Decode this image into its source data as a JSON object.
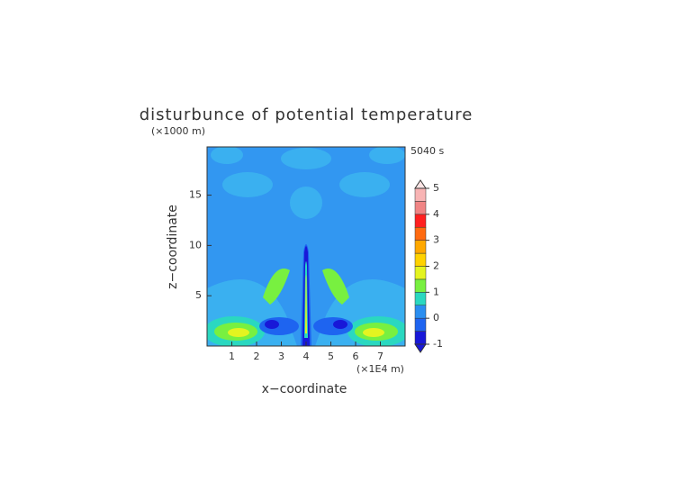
{
  "chart_data": {
    "type": "contour",
    "title": "disturbunce of potential temperature",
    "y_unit": "(×1000 m)",
    "time_label": "5040 s",
    "x_label": "x−coordinate",
    "y_label": "z−coordinate",
    "x_unit": "(×1E4 m)",
    "xlim": [
      0,
      8
    ],
    "ylim": [
      0,
      19.8
    ],
    "xticks": [
      1,
      2,
      3,
      4,
      5,
      6,
      7
    ],
    "yticks": [
      5,
      10,
      15
    ],
    "colorbar": {
      "levels": [
        -1,
        -0.5,
        0,
        0.5,
        1,
        1.5,
        2,
        2.5,
        3,
        3.5,
        4,
        4.5,
        5
      ],
      "colors": [
        "#1818d8",
        "#1e64f0",
        "#2a8ef0",
        "#2ad8c0",
        "#78f040",
        "#e4f420",
        "#ffd200",
        "#ffa800",
        "#ff6a10",
        "#ff2020",
        "#f08484",
        "#f8b4b4"
      ],
      "ticks": [
        -1,
        0,
        1,
        2,
        3,
        4,
        5
      ]
    }
  }
}
